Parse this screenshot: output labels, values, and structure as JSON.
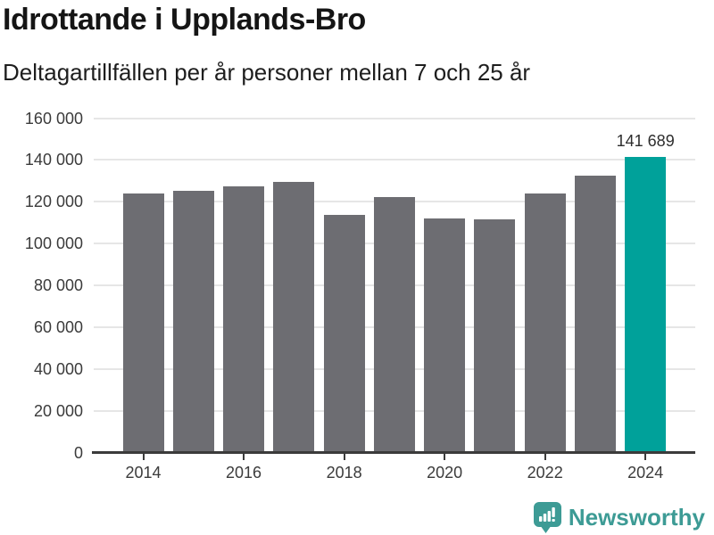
{
  "chart_data": {
    "type": "bar",
    "title": "Idrottande i Upplands-Bro",
    "subtitle": "Deltagartillfällen per år personer mellan 7 och 25 år",
    "categories": [
      "2014",
      "2015",
      "2016",
      "2017",
      "2018",
      "2019",
      "2020",
      "2021",
      "2022",
      "2023",
      "2024"
    ],
    "values": [
      124200,
      125500,
      127600,
      129500,
      113700,
      122100,
      112200,
      111700,
      124200,
      132700,
      141689
    ],
    "highlight_category": "2024",
    "highlight_value_label": "141 689",
    "ylim": [
      0,
      160000
    ],
    "yticks": [
      0,
      20000,
      40000,
      60000,
      80000,
      100000,
      120000,
      140000,
      160000
    ],
    "ytick_labels": [
      "0",
      "20 000",
      "40 000",
      "60 000",
      "80 000",
      "100 000",
      "120 000",
      "140 000",
      "160 000"
    ],
    "xtick_labels": [
      "2014",
      "2016",
      "2018",
      "2020",
      "2022",
      "2024"
    ],
    "grid": "horizontal",
    "legend": "none",
    "colors": {
      "bar": "#6d6d72",
      "highlight": "#00a19a",
      "gridline": "#e6e6e6",
      "axis": "#3b3b3b",
      "label": "#3b3b3b"
    }
  },
  "footer": {
    "brand": "Newsworthy",
    "brand_color": "#3d9b95",
    "logo_icon": "newsworthy-speech-bubble-chart-icon"
  }
}
